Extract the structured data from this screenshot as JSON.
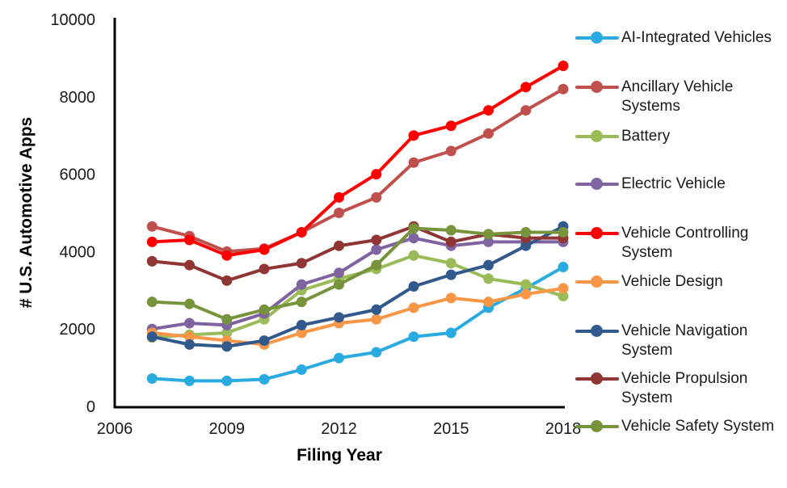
{
  "chart_data": {
    "type": "line",
    "title": "",
    "xlabel": "Filing Year",
    "ylabel": "# U.S. Automotive Apps",
    "x": [
      2007,
      2008,
      2009,
      2010,
      2011,
      2012,
      2013,
      2014,
      2015,
      2016,
      2017,
      2018
    ],
    "xlim": [
      2006,
      2018
    ],
    "ylim": [
      0,
      10000
    ],
    "xticks": [
      2006,
      2009,
      2012,
      2015,
      2018
    ],
    "yticks": [
      0,
      2000,
      4000,
      6000,
      8000,
      10000
    ],
    "grid": false,
    "legend_position": "right",
    "marker": "circle",
    "axis_color": "#000000",
    "series": [
      {
        "name": "AI-Integrated Vehicles",
        "color": "#29ABE2",
        "values": [
          720,
          660,
          660,
          700,
          950,
          1250,
          1400,
          1800,
          1900,
          2550,
          3050,
          3600
        ]
      },
      {
        "name": "Ancillary Vehicle Systems",
        "color": "#C0504D",
        "values": [
          4650,
          4400,
          4000,
          4080,
          4500,
          5000,
          5400,
          6300,
          6600,
          7050,
          7650,
          8200
        ]
      },
      {
        "name": "Battery",
        "color": "#9BBB59",
        "values": [
          1780,
          1850,
          1900,
          2250,
          3000,
          3300,
          3550,
          3900,
          3700,
          3300,
          3150,
          2850
        ]
      },
      {
        "name": "Electric Vehicle",
        "color": "#8064A2",
        "values": [
          2000,
          2150,
          2100,
          2400,
          3150,
          3450,
          4050,
          4350,
          4150,
          4250,
          4250,
          4250
        ]
      },
      {
        "name": "Vehicle Controlling System",
        "color": "#FE0000",
        "values": [
          4250,
          4300,
          3900,
          4050,
          4500,
          5400,
          6000,
          7000,
          7250,
          7650,
          8250,
          8800
        ]
      },
      {
        "name": "Vehicle Design",
        "color": "#F79646",
        "values": [
          1900,
          1800,
          1700,
          1600,
          1900,
          2150,
          2250,
          2550,
          2800,
          2700,
          2900,
          3050
        ]
      },
      {
        "name": "Vehicle Navigation System",
        "color": "#31598C",
        "values": [
          1800,
          1600,
          1550,
          1700,
          2100,
          2300,
          2500,
          3100,
          3400,
          3650,
          4150,
          4650
        ]
      },
      {
        "name": "Vehicle Propulsion System",
        "color": "#8F3533",
        "values": [
          3750,
          3650,
          3250,
          3550,
          3700,
          4150,
          4300,
          4650,
          4250,
          4450,
          4350,
          4350
        ]
      },
      {
        "name": "Vehicle Safety System",
        "color": "#77933C",
        "values": [
          2700,
          2650,
          2250,
          2500,
          2700,
          3150,
          3650,
          4600,
          4550,
          4450,
          4500,
          4500
        ]
      }
    ]
  }
}
